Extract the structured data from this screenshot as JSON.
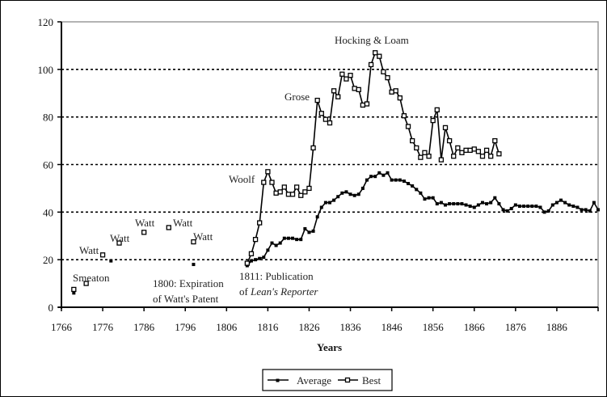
{
  "chart_data": {
    "type": "line",
    "title": "",
    "xlabel": "Years",
    "ylabel": "",
    "xlim": [
      1766,
      1896
    ],
    "ylim": [
      0,
      120
    ],
    "x_ticks": [
      "1766",
      "1776",
      "1786",
      "1796",
      "1806",
      "1816",
      "1826",
      "1836",
      "1846",
      "1856",
      "1866",
      "1876",
      "1886"
    ],
    "y_ticks": [
      "0",
      "20",
      "40",
      "60",
      "80",
      "100",
      "120"
    ],
    "grid": "horizontal dashed at 20,40,60,80,100",
    "legend": {
      "position": "bottom",
      "entries": [
        "Average",
        "Best"
      ]
    },
    "series": [
      {
        "name": "Average",
        "marker": "filled-square",
        "points_isolated": [
          [
            1769,
            6
          ],
          [
            1778,
            19.5
          ],
          [
            1798,
            18
          ]
        ],
        "points_line": [
          [
            1811,
            17.5
          ],
          [
            1812,
            19.5
          ],
          [
            1813,
            20
          ],
          [
            1814,
            20.5
          ],
          [
            1815,
            21
          ],
          [
            1816,
            24
          ],
          [
            1817,
            27
          ],
          [
            1818,
            26
          ],
          [
            1819,
            27
          ],
          [
            1820,
            29
          ],
          [
            1821,
            29
          ],
          [
            1822,
            29
          ],
          [
            1823,
            28.5
          ],
          [
            1824,
            28.5
          ],
          [
            1825,
            33
          ],
          [
            1826,
            31.5
          ],
          [
            1827,
            32
          ],
          [
            1828,
            38
          ],
          [
            1829,
            42
          ],
          [
            1830,
            44
          ],
          [
            1831,
            44
          ],
          [
            1832,
            45
          ],
          [
            1833,
            46.5
          ],
          [
            1834,
            48
          ],
          [
            1835,
            48.5
          ],
          [
            1836,
            47.5
          ],
          [
            1837,
            47
          ],
          [
            1838,
            47.5
          ],
          [
            1839,
            50
          ],
          [
            1840,
            53.5
          ],
          [
            1841,
            55
          ],
          [
            1842,
            55
          ],
          [
            1843,
            56.5
          ],
          [
            1844,
            55.5
          ],
          [
            1845,
            56.5
          ],
          [
            1846,
            53.5
          ],
          [
            1847,
            53.5
          ],
          [
            1848,
            53.5
          ],
          [
            1849,
            53
          ],
          [
            1850,
            52
          ],
          [
            1851,
            51
          ],
          [
            1852,
            49.5
          ],
          [
            1853,
            48
          ],
          [
            1854,
            45.5
          ],
          [
            1855,
            46
          ],
          [
            1856,
            46
          ],
          [
            1857,
            43.5
          ],
          [
            1858,
            44
          ],
          [
            1859,
            43
          ],
          [
            1860,
            43.5
          ],
          [
            1861,
            43.5
          ],
          [
            1862,
            43.5
          ],
          [
            1863,
            43.5
          ],
          [
            1864,
            43
          ],
          [
            1865,
            42.5
          ],
          [
            1866,
            42
          ],
          [
            1867,
            43
          ],
          [
            1868,
            44
          ],
          [
            1869,
            43.5
          ],
          [
            1870,
            44
          ],
          [
            1871,
            46
          ],
          [
            1872,
            43.5
          ],
          [
            1873,
            41
          ],
          [
            1874,
            40.5
          ],
          [
            1875,
            41.5
          ],
          [
            1876,
            43
          ],
          [
            1877,
            42.5
          ],
          [
            1878,
            42.5
          ],
          [
            1879,
            42.5
          ],
          [
            1880,
            42.5
          ],
          [
            1881,
            42.5
          ],
          [
            1882,
            42
          ],
          [
            1883,
            40
          ],
          [
            1884,
            40.5
          ],
          [
            1885,
            43
          ],
          [
            1886,
            44
          ],
          [
            1887,
            45
          ],
          [
            1888,
            44
          ],
          [
            1889,
            43
          ],
          [
            1890,
            42.5
          ],
          [
            1891,
            42
          ],
          [
            1892,
            41
          ],
          [
            1893,
            41
          ],
          [
            1894,
            40.5
          ],
          [
            1895,
            44
          ],
          [
            1896,
            41
          ]
        ]
      },
      {
        "name": "Best",
        "marker": "open-square",
        "points_isolated": [
          [
            1769,
            7.5
          ],
          [
            1772,
            10
          ],
          [
            1776,
            22
          ],
          [
            1780,
            27
          ],
          [
            1786,
            31.5
          ],
          [
            1792,
            33.5
          ],
          [
            1798,
            27.5
          ]
        ],
        "points_line": [
          [
            1811,
            18.5
          ],
          [
            1812,
            22.5
          ],
          [
            1813,
            28.5
          ],
          [
            1814,
            35.5
          ],
          [
            1815,
            52.5
          ],
          [
            1816,
            57
          ],
          [
            1817,
            52.5
          ],
          [
            1818,
            48
          ],
          [
            1819,
            48.5
          ],
          [
            1820,
            50.5
          ],
          [
            1821,
            47.5
          ],
          [
            1822,
            47.5
          ],
          [
            1823,
            50.5
          ],
          [
            1824,
            47
          ],
          [
            1825,
            48.5
          ],
          [
            1826,
            50
          ],
          [
            1827,
            67
          ],
          [
            1828,
            87
          ],
          [
            1829,
            81.5
          ],
          [
            1830,
            79
          ],
          [
            1831,
            77.5
          ],
          [
            1832,
            91
          ],
          [
            1833,
            88.5
          ],
          [
            1834,
            98
          ],
          [
            1835,
            96
          ],
          [
            1836,
            97.5
          ],
          [
            1837,
            92
          ],
          [
            1838,
            91.5
          ],
          [
            1839,
            85
          ],
          [
            1840,
            85.5
          ],
          [
            1841,
            102
          ],
          [
            1842,
            107
          ],
          [
            1843,
            105.5
          ],
          [
            1844,
            99
          ],
          [
            1845,
            96.5
          ],
          [
            1846,
            90.5
          ],
          [
            1847,
            91
          ],
          [
            1848,
            88
          ],
          [
            1849,
            80.5
          ],
          [
            1850,
            76
          ],
          [
            1851,
            70
          ],
          [
            1852,
            67
          ],
          [
            1853,
            63
          ],
          [
            1854,
            65
          ],
          [
            1855,
            63.5
          ],
          [
            1856,
            78.5
          ],
          [
            1857,
            83
          ],
          [
            1858,
            62
          ],
          [
            1859,
            75.5
          ],
          [
            1860,
            70
          ],
          [
            1861,
            63.5
          ],
          [
            1862,
            67
          ],
          [
            1863,
            65
          ],
          [
            1864,
            66
          ],
          [
            1865,
            66
          ],
          [
            1866,
            66.5
          ],
          [
            1867,
            65.5
          ],
          [
            1868,
            63.5
          ],
          [
            1869,
            66
          ],
          [
            1870,
            63.5
          ],
          [
            1871,
            70
          ],
          [
            1872,
            64.5
          ]
        ]
      }
    ],
    "annotations": [
      {
        "text": "Smeaton",
        "x": 1772,
        "y": 11
      },
      {
        "text": "Watt",
        "x": 1776,
        "y": 22
      },
      {
        "text": "Watt",
        "x": 1780,
        "y": 27
      },
      {
        "text": "Watt",
        "x": 1786,
        "y": 31.5
      },
      {
        "text": "Watt",
        "x": 1792,
        "y": 33.5
      },
      {
        "text": "Watt",
        "x": 1798,
        "y": 27.5
      },
      {
        "text": "1800: Expiration",
        "line2": "of Watt's Patent"
      },
      {
        "text": "1811: Publication",
        "line2_prefix": "of ",
        "line2_italic": "Lean's Reporter"
      },
      {
        "text": "Woolf",
        "x": 1815,
        "y": 54
      },
      {
        "text": "Grose",
        "x": 1828,
        "y": 87
      },
      {
        "text": "Hocking & Loam",
        "x": 1842,
        "y": 110
      }
    ]
  },
  "labels": {
    "smeaton": "Smeaton",
    "watt": "Watt",
    "expiration_l1": "1800: Expiration",
    "expiration_l2": "of Watt's Patent",
    "publication_l1": "1811: Publication",
    "publication_l2_prefix": "of ",
    "publication_l2_italic": "Lean's Reporter",
    "woolf": "Woolf",
    "grose": "Grose",
    "hocking": "Hocking & Loam",
    "xtitle": "Years",
    "legend_average": "Average",
    "legend_best": "Best"
  }
}
